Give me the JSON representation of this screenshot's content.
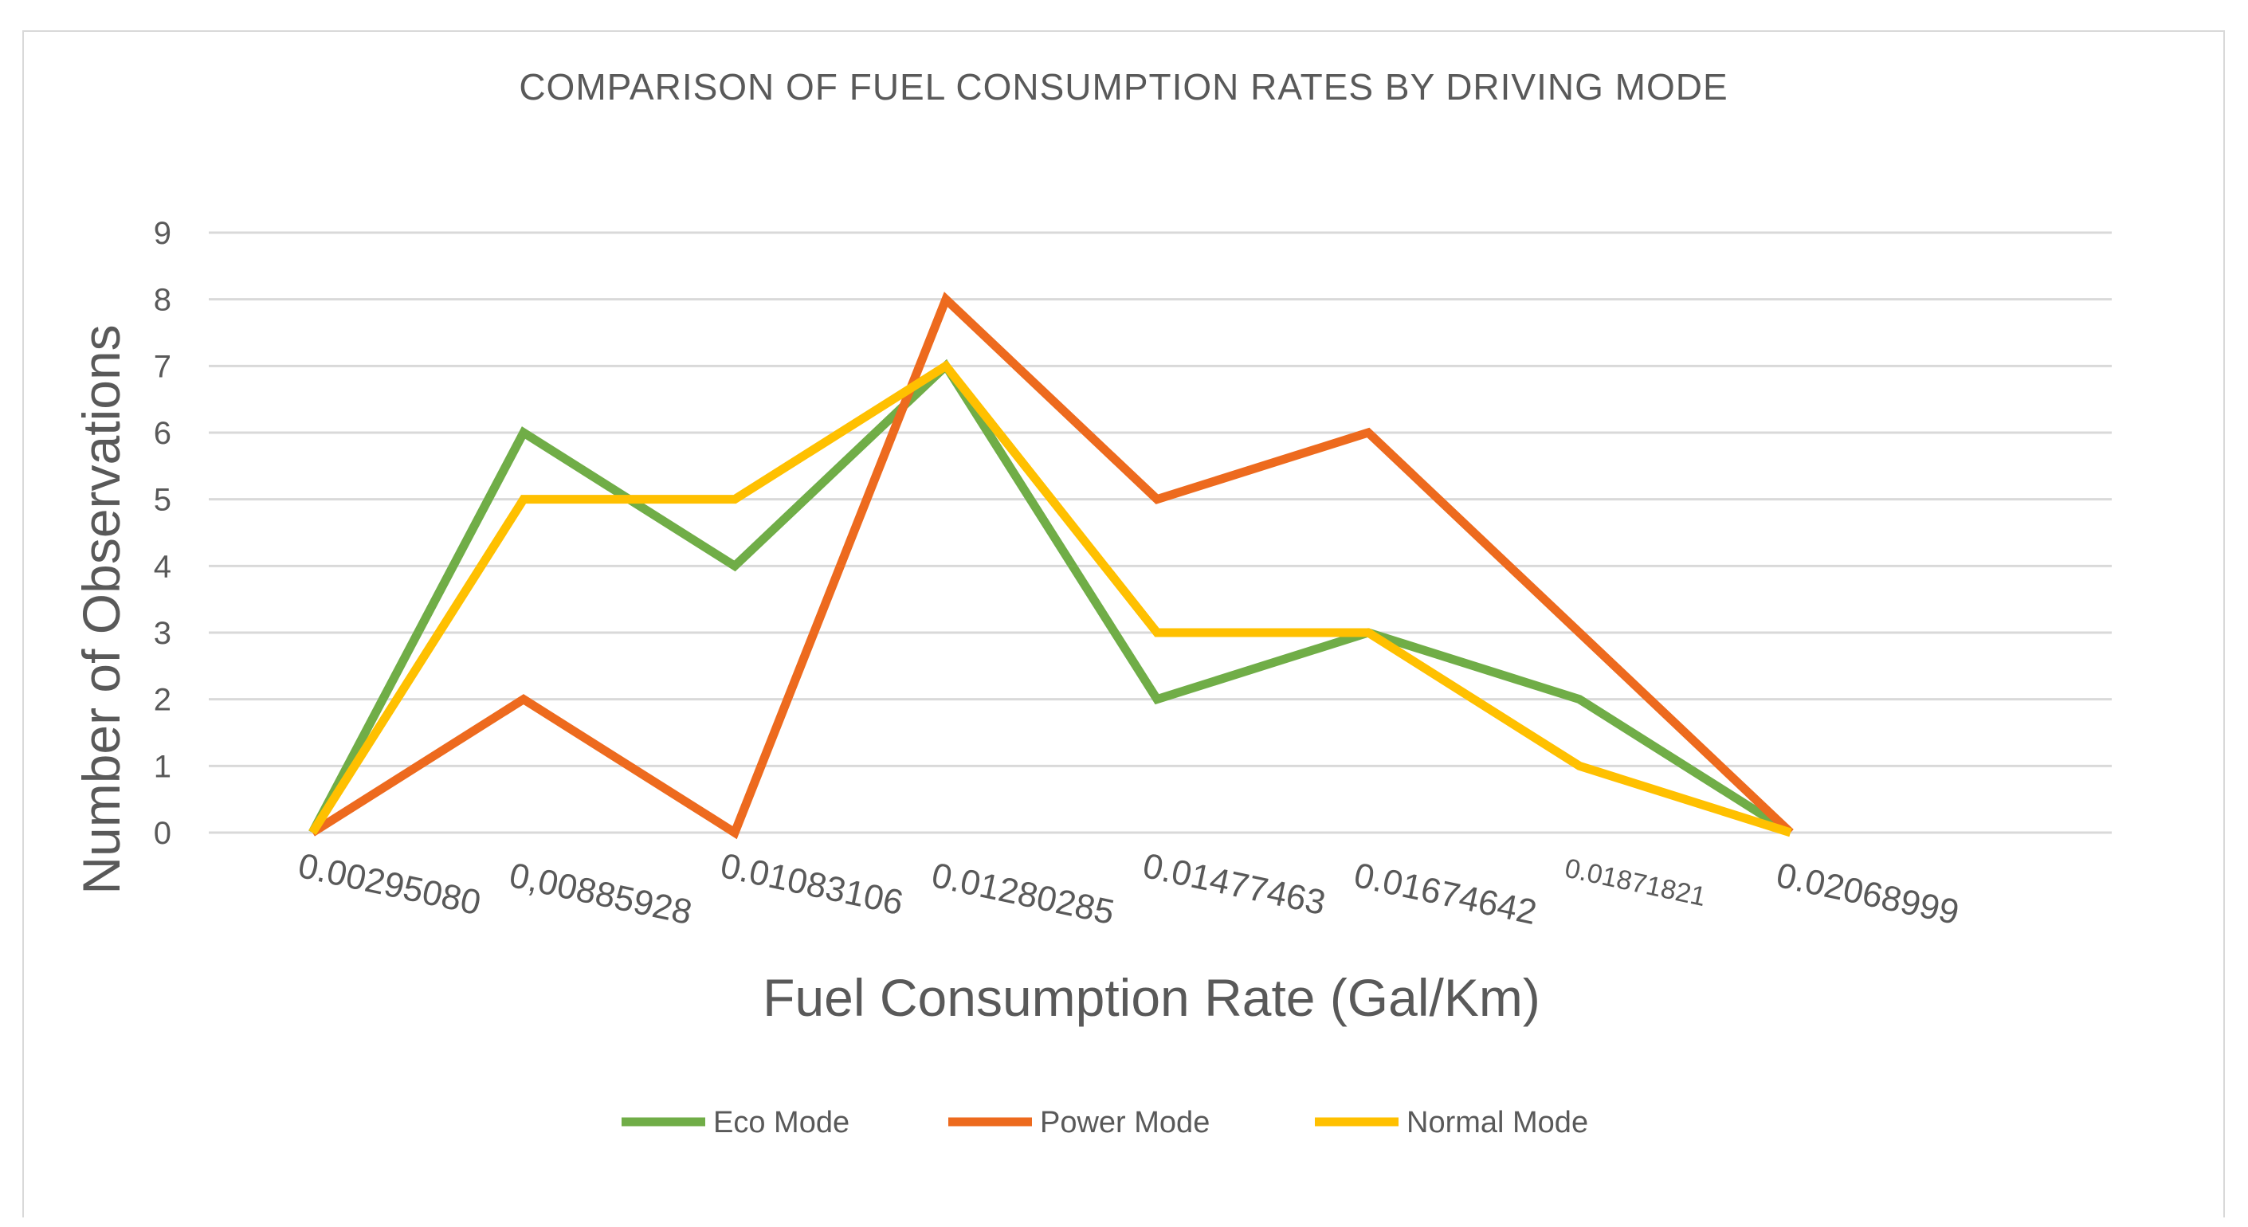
{
  "chart_data": {
    "type": "line",
    "title": "COMPARISON OF FUEL CONSUMPTION RATES BY DRIVING MODE",
    "xlabel": "Fuel Consumption Rate (Gal/Km)",
    "ylabel": "Number of Observations",
    "categories": [
      "0.00295080",
      "0,00885928",
      "0.01083106",
      "0.01280285",
      "0.01477463",
      "0.01674642",
      "0.01871821",
      "0.02068999"
    ],
    "ylim": [
      0,
      9
    ],
    "yticks": [
      "0",
      "1",
      "2",
      "3",
      "4",
      "5",
      "6",
      "7",
      "8",
      "9"
    ],
    "grid": true,
    "legend_position": "bottom",
    "series": [
      {
        "name": "Eco Mode",
        "color": "#70ad47",
        "values": [
          0,
          6,
          4,
          7,
          2,
          3,
          2,
          0
        ]
      },
      {
        "name": "Power Mode",
        "color": "#ed6a1e",
        "values": [
          0,
          2,
          0,
          8,
          5,
          6,
          3,
          0
        ]
      },
      {
        "name": "Normal Mode",
        "color": "#ffc000",
        "values": [
          0,
          5,
          5,
          7,
          3,
          3,
          1,
          0
        ]
      }
    ]
  }
}
